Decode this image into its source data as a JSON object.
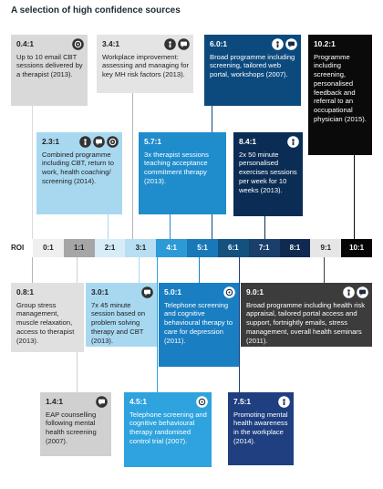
{
  "title": "A selection of high confidence sources",
  "scale": {
    "label": "ROI",
    "ticks": [
      "0:1",
      "1:1",
      "2:1",
      "3:1",
      "4:1",
      "5:1",
      "6:1",
      "7:1",
      "8:1",
      "9:1",
      "10:1"
    ]
  },
  "cards": [
    {
      "ratio": "0.4:1",
      "text": "Up to 10 email CBT sessions delivered by a therapist (2013)."
    },
    {
      "ratio": "3.4:1",
      "text": "Workplace improvement: assessing and managing for key MH risk factors (2013)."
    },
    {
      "ratio": "6.0:1",
      "text": "Broad programme including screening, tailored web portal, workshops (2007)."
    },
    {
      "ratio": "10.2:1",
      "text": "Programme including screening, personalised feedback and referral to an occupational physician (2015)."
    },
    {
      "ratio": "2.3:1",
      "text": "Combined programme including CBT, return to work, health coaching/ screening (2014)."
    },
    {
      "ratio": "5.7:1",
      "text": "3x therapist sessions teaching acceptance commitment therapy (2013)."
    },
    {
      "ratio": "8.4:1",
      "text": "2x 50 minute personalised exercises sessions per week for 10 weeks (2013)."
    },
    {
      "ratio": "0.8:1",
      "text": "Group stress management, muscle relaxation, access to therapist (2013)."
    },
    {
      "ratio": "3.0:1",
      "text": "7x 45 minute session based on problem solving therapy and CBT (2013)."
    },
    {
      "ratio": "5.0:1",
      "text": "Telephone screening and cognitive behavioural therapy to care for depression (2011)."
    },
    {
      "ratio": "9.0:1",
      "text": "Broad programme including health risk appraisal, tailored portal access and support, fortnightly emails, stress management, overall health seminars (2011)."
    },
    {
      "ratio": "1.4:1",
      "text": "EAP counselling following mental health screening (2007)."
    },
    {
      "ratio": "4.5:1",
      "text": "Telephone screening and cognitive behavioural therapy randomised control trial (2007)."
    },
    {
      "ratio": "7.5:1",
      "text": "Promoting mental health awareness in the workplace (2014)."
    }
  ]
}
